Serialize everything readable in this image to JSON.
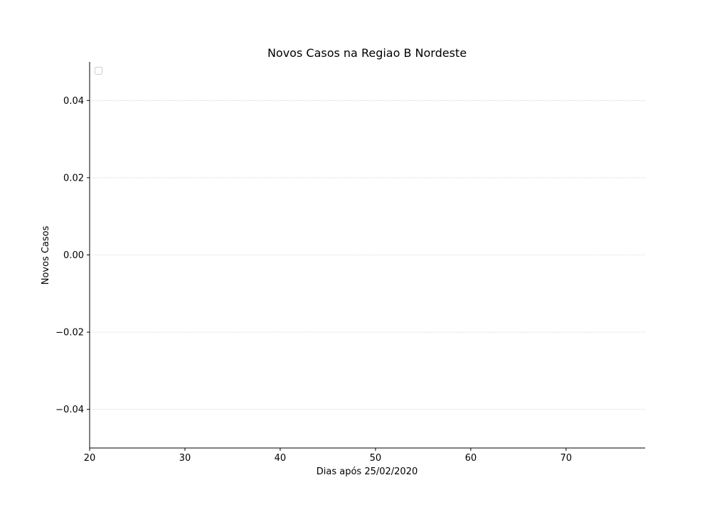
{
  "chart_data": {
    "type": "line",
    "title": "Novos Casos na Regiao B Nordeste",
    "xlabel": "Dias após 25/02/2020",
    "ylabel": "Novos Casos",
    "xlim": [
      20,
      78.3
    ],
    "ylim": [
      -0.05,
      0.05
    ],
    "x_ticks": [
      20,
      30,
      40,
      50,
      60,
      70
    ],
    "x_tick_labels": [
      "20",
      "30",
      "40",
      "50",
      "60",
      "70"
    ],
    "y_ticks": [
      -0.04,
      -0.02,
      0.0,
      0.02,
      0.04
    ],
    "y_tick_labels": [
      "−0.04",
      "−0.02",
      "0.00",
      "0.02",
      "0.04"
    ],
    "grid": "horizontal dotted",
    "legend": "top-left, empty",
    "series": []
  }
}
